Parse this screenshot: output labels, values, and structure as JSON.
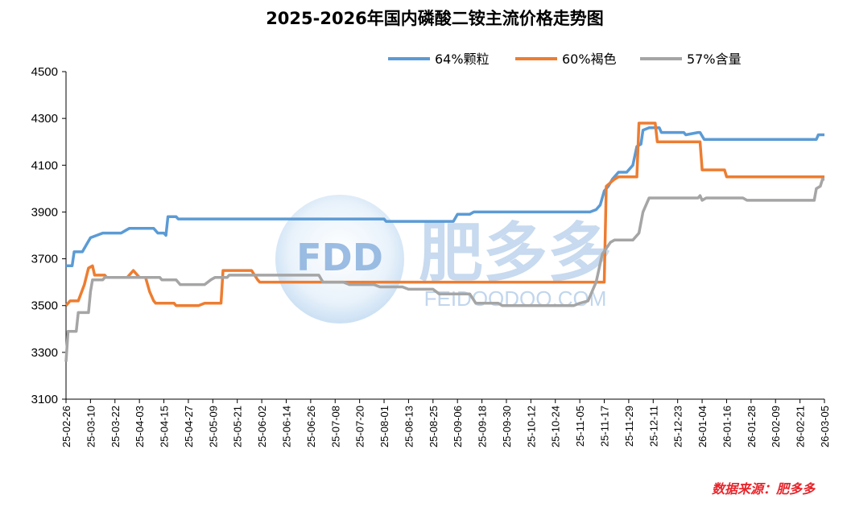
{
  "chart_data": {
    "type": "line",
    "title": "2025-2026年国内磷酸二铵主流价格走势图",
    "ylim": [
      3100,
      4500
    ],
    "yticks": [
      3100,
      3300,
      3500,
      3700,
      3900,
      4100,
      4300,
      4500
    ],
    "x_start": "2025-02-26",
    "x_end": "2026-03-05",
    "x_tick_labels": [
      "25-02-26",
      "25-03-10",
      "25-03-22",
      "25-04-03",
      "25-04-15",
      "25-04-27",
      "25-05-09",
      "25-05-21",
      "25-06-02",
      "25-06-14",
      "25-06-26",
      "25-07-08",
      "25-07-20",
      "25-08-01",
      "25-08-13",
      "25-08-25",
      "25-09-06",
      "25-09-18",
      "25-09-30",
      "25-10-12",
      "25-10-24",
      "25-11-05",
      "25-11-17",
      "25-11-29",
      "25-12-11",
      "25-12-23",
      "26-01-04",
      "26-01-16",
      "26-01-28",
      "26-02-09",
      "26-02-21",
      "26-03-05"
    ],
    "legend_position": "top-right",
    "series": [
      {
        "name": "64%颗粒",
        "color": "#5b9bd5",
        "points": [
          [
            "2025-02-26",
            3670
          ],
          [
            "2025-03-01",
            3670
          ],
          [
            "2025-03-02",
            3730
          ],
          [
            "2025-03-06",
            3730
          ],
          [
            "2025-03-08",
            3760
          ],
          [
            "2025-03-10",
            3790
          ],
          [
            "2025-03-13",
            3800
          ],
          [
            "2025-03-16",
            3810
          ],
          [
            "2025-03-25",
            3810
          ],
          [
            "2025-03-27",
            3820
          ],
          [
            "2025-03-29",
            3830
          ],
          [
            "2025-04-10",
            3830
          ],
          [
            "2025-04-12",
            3810
          ],
          [
            "2025-04-15",
            3810
          ],
          [
            "2025-04-16",
            3800
          ],
          [
            "2025-04-17",
            3880
          ],
          [
            "2025-04-21",
            3880
          ],
          [
            "2025-04-22",
            3870
          ],
          [
            "2025-08-01",
            3870
          ],
          [
            "2025-08-02",
            3860
          ],
          [
            "2025-09-04",
            3860
          ],
          [
            "2025-09-06",
            3890
          ],
          [
            "2025-09-12",
            3890
          ],
          [
            "2025-09-14",
            3900
          ],
          [
            "2025-11-10",
            3900
          ],
          [
            "2025-11-13",
            3910
          ],
          [
            "2025-11-15",
            3930
          ],
          [
            "2025-11-17",
            3990
          ],
          [
            "2025-11-19",
            4010
          ],
          [
            "2025-11-21",
            4040
          ],
          [
            "2025-11-24",
            4070
          ],
          [
            "2025-11-28",
            4070
          ],
          [
            "2025-12-01",
            4100
          ],
          [
            "2025-12-03",
            4180
          ],
          [
            "2025-12-05",
            4190
          ],
          [
            "2025-12-06",
            4250
          ],
          [
            "2025-12-09",
            4260
          ],
          [
            "2025-12-14",
            4260
          ],
          [
            "2025-12-15",
            4240
          ],
          [
            "2025-12-26",
            4240
          ],
          [
            "2025-12-27",
            4230
          ],
          [
            "2026-01-02",
            4240
          ],
          [
            "2026-01-03",
            4240
          ],
          [
            "2026-01-05",
            4210
          ],
          [
            "2026-03-01",
            4210
          ],
          [
            "2026-03-02",
            4230
          ],
          [
            "2026-03-05",
            4230
          ]
        ]
      },
      {
        "name": "60%褐色",
        "color": "#ed7d31",
        "points": [
          [
            "2025-02-26",
            3500
          ],
          [
            "2025-02-28",
            3520
          ],
          [
            "2025-03-04",
            3520
          ],
          [
            "2025-03-07",
            3590
          ],
          [
            "2025-03-09",
            3660
          ],
          [
            "2025-03-11",
            3670
          ],
          [
            "2025-03-12",
            3630
          ],
          [
            "2025-03-17",
            3630
          ],
          [
            "2025-03-18",
            3620
          ],
          [
            "2025-03-28",
            3620
          ],
          [
            "2025-03-31",
            3650
          ],
          [
            "2025-04-03",
            3620
          ],
          [
            "2025-04-06",
            3620
          ],
          [
            "2025-04-08",
            3560
          ],
          [
            "2025-04-10",
            3520
          ],
          [
            "2025-04-11",
            3510
          ],
          [
            "2025-04-20",
            3510
          ],
          [
            "2025-04-21",
            3500
          ],
          [
            "2025-05-02",
            3500
          ],
          [
            "2025-05-05",
            3510
          ],
          [
            "2025-05-13",
            3510
          ],
          [
            "2025-05-14",
            3650
          ],
          [
            "2025-05-28",
            3650
          ],
          [
            "2025-05-31",
            3610
          ],
          [
            "2025-06-01",
            3600
          ],
          [
            "2025-11-17",
            3600
          ],
          [
            "2025-11-18",
            4010
          ],
          [
            "2025-11-22",
            4040
          ],
          [
            "2025-11-24",
            4050
          ],
          [
            "2025-12-03",
            4050
          ],
          [
            "2025-12-04",
            4280
          ],
          [
            "2025-12-12",
            4280
          ],
          [
            "2025-12-13",
            4200
          ],
          [
            "2026-01-03",
            4200
          ],
          [
            "2026-01-04",
            4080
          ],
          [
            "2026-01-15",
            4080
          ],
          [
            "2026-01-16",
            4050
          ],
          [
            "2026-03-05",
            4050
          ]
        ]
      },
      {
        "name": "57%含量",
        "color": "#a5a5a5",
        "points": [
          [
            "2025-02-26",
            3260
          ],
          [
            "2025-02-27",
            3390
          ],
          [
            "2025-03-03",
            3390
          ],
          [
            "2025-03-04",
            3470
          ],
          [
            "2025-03-09",
            3470
          ],
          [
            "2025-03-10",
            3560
          ],
          [
            "2025-03-11",
            3610
          ],
          [
            "2025-03-16",
            3610
          ],
          [
            "2025-03-17",
            3620
          ],
          [
            "2025-04-13",
            3620
          ],
          [
            "2025-04-14",
            3610
          ],
          [
            "2025-04-21",
            3610
          ],
          [
            "2025-04-23",
            3590
          ],
          [
            "2025-05-05",
            3590
          ],
          [
            "2025-05-08",
            3610
          ],
          [
            "2025-05-10",
            3620
          ],
          [
            "2025-05-16",
            3620
          ],
          [
            "2025-05-17",
            3630
          ],
          [
            "2025-06-30",
            3630
          ],
          [
            "2025-07-02",
            3600
          ],
          [
            "2025-07-12",
            3600
          ],
          [
            "2025-07-15",
            3590
          ],
          [
            "2025-07-27",
            3590
          ],
          [
            "2025-07-30",
            3580
          ],
          [
            "2025-08-10",
            3580
          ],
          [
            "2025-08-13",
            3570
          ],
          [
            "2025-08-25",
            3570
          ],
          [
            "2025-08-28",
            3550
          ],
          [
            "2025-09-12",
            3550
          ],
          [
            "2025-09-15",
            3510
          ],
          [
            "2025-09-26",
            3510
          ],
          [
            "2025-09-28",
            3500
          ],
          [
            "2025-11-02",
            3500
          ],
          [
            "2025-11-05",
            3510
          ],
          [
            "2025-11-09",
            3520
          ],
          [
            "2025-11-11",
            3560
          ],
          [
            "2025-11-13",
            3600
          ],
          [
            "2025-11-16",
            3720
          ],
          [
            "2025-11-20",
            3770
          ],
          [
            "2025-11-22",
            3780
          ],
          [
            "2025-12-01",
            3780
          ],
          [
            "2025-12-04",
            3810
          ],
          [
            "2025-12-06",
            3900
          ],
          [
            "2025-12-09",
            3960
          ],
          [
            "2026-01-02",
            3960
          ],
          [
            "2026-01-03",
            3970
          ],
          [
            "2026-01-04",
            3950
          ],
          [
            "2026-01-06",
            3960
          ],
          [
            "2026-01-24",
            3960
          ],
          [
            "2026-01-26",
            3950
          ],
          [
            "2026-02-28",
            3950
          ],
          [
            "2026-03-01",
            4000
          ],
          [
            "2026-03-03",
            4010
          ],
          [
            "2026-03-04",
            4040
          ],
          [
            "2026-03-05",
            4040
          ]
        ]
      }
    ]
  },
  "watermark": {
    "logo_text": "FDD",
    "brand_text": "肥多多",
    "url_text": "FEIDOODOO.COM"
  },
  "source_note": "数据来源：肥多多"
}
